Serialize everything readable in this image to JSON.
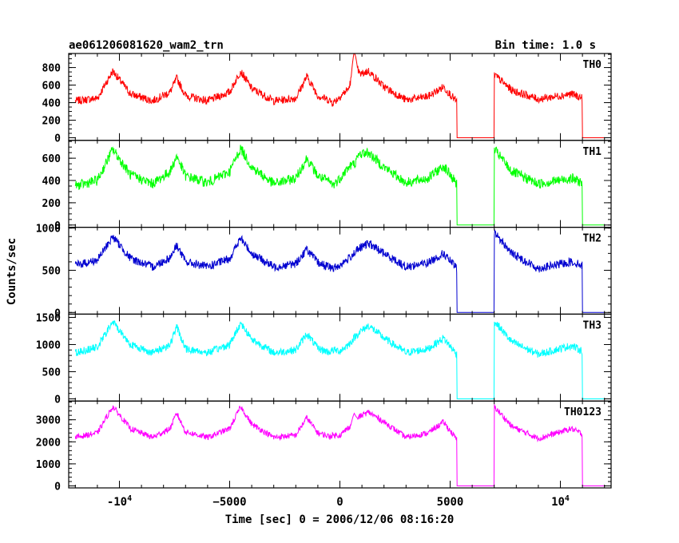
{
  "chart_data": {
    "type": "line",
    "title": "ae061206081620_wam2_trn",
    "subtitle": "Bin time: 1.0 s",
    "xlabel": "Time [sec] 0 = 2006/12/06 08:16:20",
    "ylabel": "Counts/sec",
    "xlim": [
      -12300,
      12300
    ],
    "x_ticks": [
      {
        "value": -10000,
        "label": "-10",
        "exp": "4"
      },
      {
        "value": -5000,
        "label": "−5000",
        "exp": ""
      },
      {
        "value": 0,
        "label": "0",
        "exp": ""
      },
      {
        "value": 5000,
        "label": "5000",
        "exp": ""
      },
      {
        "value": 10000,
        "label": "10",
        "exp": "4"
      }
    ],
    "gaps": [
      [
        5300,
        7000
      ],
      [
        11000,
        12000
      ]
    ],
    "panels": [
      {
        "name": "TH0",
        "color": "#ff0000",
        "ylim": [
          -30,
          960
        ],
        "yticks": [
          0,
          200,
          400,
          600,
          800
        ],
        "ytick_labels": [
          "0",
          "200",
          "400",
          "600",
          "800"
        ],
        "noise": 45,
        "spike": 980,
        "x": [
          -12000,
          -11000,
          -10300,
          -9500,
          -8500,
          -7700,
          -7400,
          -7000,
          -6000,
          -5000,
          -4500,
          -4000,
          -3000,
          -2000,
          -1500,
          -1000,
          -500,
          -300,
          0,
          400,
          700,
          900,
          1300,
          2000,
          3000,
          4000,
          4700,
          5300,
          7000,
          7800,
          9000,
          10500,
          11000
        ],
        "y": [
          420,
          450,
          760,
          500,
          420,
          520,
          680,
          480,
          420,
          520,
          760,
          560,
          420,
          450,
          700,
          480,
          430,
          400,
          470,
          560,
          860,
          720,
          760,
          580,
          430,
          470,
          580,
          410,
          720,
          540,
          440,
          500,
          450
        ]
      },
      {
        "name": "TH1",
        "color": "#00ff00",
        "ylim": [
          -20,
          760
        ],
        "yticks": [
          0,
          200,
          400,
          600
        ],
        "ytick_labels": [
          "0",
          "200",
          "400",
          "600"
        ],
        "noise": 45,
        "spike": 0,
        "x": [
          -12000,
          -11000,
          -10300,
          -9500,
          -8500,
          -7700,
          -7400,
          -7000,
          -6000,
          -5000,
          -4500,
          -4000,
          -3000,
          -2000,
          -1500,
          -1000,
          -500,
          -300,
          0,
          400,
          700,
          900,
          1300,
          2000,
          3000,
          4000,
          4700,
          5300,
          7000,
          7800,
          9000,
          10500,
          11000
        ],
        "y": [
          350,
          400,
          680,
          450,
          370,
          480,
          620,
          440,
          380,
          480,
          690,
          520,
          370,
          420,
          600,
          440,
          390,
          360,
          420,
          520,
          560,
          640,
          650,
          520,
          380,
          420,
          530,
          370,
          680,
          480,
          370,
          420,
          380
        ]
      },
      {
        "name": "TH2",
        "color": "#0000d0",
        "ylim": [
          -20,
          1010
        ],
        "yticks": [
          0,
          500,
          1000
        ],
        "ytick_labels": [
          "0",
          "500",
          "1000"
        ],
        "noise": 50,
        "spike": 0,
        "x": [
          -12000,
          -11000,
          -10300,
          -9500,
          -8500,
          -7700,
          -7400,
          -7000,
          -6000,
          -5000,
          -4500,
          -4000,
          -3000,
          -2000,
          -1500,
          -1000,
          -500,
          -300,
          0,
          400,
          700,
          900,
          1300,
          2000,
          3000,
          4000,
          4700,
          5300,
          7000,
          7800,
          9000,
          10500,
          11000
        ],
        "y": [
          560,
          620,
          900,
          640,
          540,
          650,
          800,
          600,
          540,
          640,
          880,
          700,
          540,
          580,
          750,
          590,
          540,
          520,
          560,
          640,
          720,
          760,
          820,
          700,
          540,
          590,
          700,
          520,
          950,
          700,
          520,
          600,
          560
        ]
      },
      {
        "name": "TH3",
        "color": "#00ffff",
        "ylim": [
          -40,
          1560
        ],
        "yticks": [
          0,
          500,
          1000,
          1500
        ],
        "ytick_labels": [
          "0",
          "500",
          "1000",
          "1500"
        ],
        "noise": 70,
        "spike": 0,
        "x": [
          -12000,
          -11000,
          -10300,
          -9500,
          -8500,
          -7700,
          -7400,
          -7000,
          -6000,
          -5000,
          -4500,
          -4000,
          -3000,
          -2000,
          -1500,
          -1000,
          -500,
          -300,
          0,
          400,
          700,
          900,
          1300,
          2000,
          3000,
          4000,
          4700,
          5300,
          7000,
          7800,
          9000,
          10500,
          11000
        ],
        "y": [
          850,
          950,
          1420,
          1000,
          850,
          1000,
          1330,
          920,
          850,
          1000,
          1400,
          1100,
          850,
          900,
          1200,
          930,
          860,
          900,
          880,
          1000,
          1150,
          1230,
          1350,
          1120,
          850,
          920,
          1120,
          820,
          1430,
          1050,
          820,
          980,
          880
        ]
      },
      {
        "name": "TH0123",
        "color": "#ff00ff",
        "ylim": [
          -90,
          3850
        ],
        "yticks": [
          0,
          1000,
          2000,
          3000
        ],
        "ytick_labels": [
          "0",
          "1000",
          "2000",
          "3000"
        ],
        "noise": 130,
        "spike": 3300,
        "x": [
          -12000,
          -11000,
          -10300,
          -9500,
          -8500,
          -7700,
          -7400,
          -7000,
          -6000,
          -5000,
          -4500,
          -4000,
          -3000,
          -2000,
          -1500,
          -1000,
          -500,
          -300,
          0,
          400,
          700,
          900,
          1300,
          2000,
          3000,
          4000,
          4700,
          5300,
          7000,
          7800,
          9000,
          10500,
          11000
        ],
        "y": [
          2200,
          2400,
          3600,
          2600,
          2200,
          2600,
          3300,
          2450,
          2200,
          2600,
          3600,
          2800,
          2200,
          2300,
          3100,
          2400,
          2250,
          2300,
          2300,
          2650,
          3000,
          3150,
          3350,
          2900,
          2200,
          2400,
          2900,
          2100,
          3600,
          2700,
          2150,
          2600,
          2350
        ]
      }
    ]
  }
}
